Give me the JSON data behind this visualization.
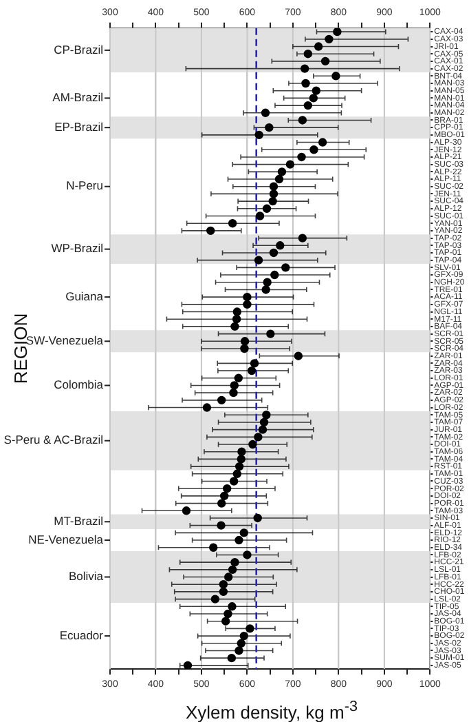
{
  "chart_data": {
    "type": "scatter",
    "orientation": "horizontal",
    "xlabel": "Xylem density, kg m$^{-3}$",
    "ylabel": "REGION",
    "categories": [
      "CAX-04",
      "CAX-03",
      "JRI-01",
      "CAX-05",
      "CAX-01",
      "CAX-02",
      "BNT-04",
      "MAN-03",
      "MAN-05",
      "MAN-01",
      "MAN-04",
      "MAN-02",
      "BRA-01",
      "CPP-01",
      "MBO-01",
      "ALP-30",
      "JEN-12",
      "ALP-21",
      "SUC-03",
      "ALP-22",
      "ALP-11",
      "SUC-02",
      "JEN-11",
      "SUC-04",
      "ALP-12",
      "SUC-01",
      "YAN-01",
      "YAN-02",
      "TAP-02",
      "TAP-03",
      "TAP-01",
      "TAP-04",
      "SLV-01",
      "GFX-09",
      "NGH-20",
      "TRE-01",
      "ACA-11",
      "GFX-07",
      "NGL-11",
      "M17-11",
      "BAF-04",
      "SCR-01",
      "SCR-05",
      "SCR-04",
      "ZAR-01",
      "ZAR-04",
      "ZAR-03",
      "LOR-01",
      "AGP-01",
      "ZAR-02",
      "AGP-02",
      "LOR-02",
      "TAM-05",
      "TAM-07",
      "JUR-01",
      "TAM-02",
      "DOI-01",
      "TAM-06",
      "TAM-04",
      "RST-01",
      "TAM-01",
      "CUZ-03",
      "POR-02",
      "DOI-02",
      "POR-01",
      "TAM-03",
      "SIN-01",
      "ALF-01",
      "ELD-12",
      "RIO-12",
      "ELD-34",
      "LFB-02",
      "HCC-21",
      "LSL-01",
      "LFB-01",
      "HCC-22",
      "CHO-01",
      "LSL-02",
      "TIP-05",
      "JAS-04",
      "BOG-01",
      "TIP-03",
      "BOG-02",
      "JAS-02",
      "JAS-03",
      "SUM-01",
      "JAS-05"
    ],
    "values": [
      797,
      779,
      756,
      733,
      771,
      726,
      794,
      728,
      751,
      745,
      733,
      640,
      721,
      648,
      626,
      765,
      746,
      719,
      694,
      676,
      670,
      658,
      658,
      656,
      643,
      628,
      568,
      520,
      721,
      672,
      658,
      625,
      684,
      660,
      644,
      641,
      600,
      600,
      578,
      577,
      573,
      651,
      595,
      594,
      712,
      616,
      610,
      581,
      572,
      570,
      544,
      512,
      642,
      637,
      634,
      624,
      612,
      588,
      587,
      583,
      578,
      571,
      556,
      550,
      544,
      467,
      623,
      543,
      593,
      582,
      526,
      600,
      573,
      568,
      559,
      548,
      548,
      530,
      567,
      558,
      553,
      606,
      593,
      587,
      582,
      566,
      470
    ],
    "errors": [
      [
        752,
        903
      ],
      [
        727,
        952
      ],
      [
        700,
        931
      ],
      [
        709,
        877
      ],
      [
        654,
        891
      ],
      [
        466,
        933
      ],
      [
        745,
        847
      ],
      [
        691,
        885
      ],
      [
        657,
        850
      ],
      [
        680,
        814
      ],
      [
        661,
        807
      ],
      [
        592,
        806
      ],
      [
        690,
        871
      ],
      [
        615,
        799
      ],
      [
        501,
        754
      ],
      [
        709,
        823
      ],
      [
        632,
        860
      ],
      [
        586,
        856
      ],
      [
        568,
        821
      ],
      [
        603,
        753
      ],
      [
        558,
        787
      ],
      [
        569,
        749
      ],
      [
        521,
        798
      ],
      [
        580,
        734
      ],
      [
        579,
        707
      ],
      [
        510,
        749
      ],
      [
        468,
        670
      ],
      [
        457,
        587
      ],
      [
        625,
        818
      ],
      [
        613,
        733
      ],
      [
        546,
        772
      ],
      [
        491,
        754
      ],
      [
        577,
        792
      ],
      [
        542,
        781
      ],
      [
        531,
        758
      ],
      [
        552,
        730
      ],
      [
        502,
        701
      ],
      [
        457,
        746
      ],
      [
        459,
        699
      ],
      [
        424,
        731
      ],
      [
        459,
        690
      ],
      [
        537,
        770
      ],
      [
        500,
        697
      ],
      [
        500,
        693
      ],
      [
        627,
        801
      ],
      [
        535,
        699
      ],
      [
        536,
        690
      ],
      [
        501,
        663
      ],
      [
        477,
        671
      ],
      [
        486,
        656
      ],
      [
        458,
        632
      ],
      [
        384,
        645
      ],
      [
        551,
        733
      ],
      [
        537,
        739
      ],
      [
        524,
        745
      ],
      [
        512,
        742
      ],
      [
        537,
        687
      ],
      [
        506,
        668
      ],
      [
        493,
        685
      ],
      [
        477,
        691
      ],
      [
        480,
        678
      ],
      [
        501,
        643
      ],
      [
        450,
        661
      ],
      [
        456,
        642
      ],
      [
        444,
        645
      ],
      [
        370,
        566
      ],
      [
        519,
        731
      ],
      [
        475,
        610
      ],
      [
        443,
        743
      ],
      [
        480,
        686
      ],
      [
        406,
        649
      ],
      [
        533,
        668
      ],
      [
        453,
        696
      ],
      [
        430,
        709
      ],
      [
        461,
        657
      ],
      [
        435,
        664
      ],
      [
        441,
        656
      ],
      [
        443,
        617
      ],
      [
        453,
        684
      ],
      [
        475,
        644
      ],
      [
        513,
        710
      ],
      [
        553,
        661
      ],
      [
        492,
        694
      ],
      [
        501,
        675
      ],
      [
        509,
        656
      ],
      [
        498,
        637
      ],
      [
        453,
        602
      ]
    ],
    "color": "#000000",
    "marker": "circle",
    "xlim": [
      300,
      1000
    ],
    "xticks": [
      300,
      {
        "value": 350,
        "label": null
      },
      400,
      {
        "value": 450,
        "label": null
      },
      500,
      {
        "value": 550,
        "label": null
      },
      600,
      {
        "value": 650,
        "label": null
      },
      700,
      {
        "value": 750,
        "label": null
      },
      800,
      {
        "value": 850,
        "label": null
      },
      900,
      {
        "value": 950,
        "label": null
      },
      1000
    ],
    "x2lim": [
      300,
      1000
    ],
    "x2ticks": [
      300,
      {
        "value": 350,
        "label": null
      },
      400,
      {
        "value": 450,
        "label": null
      },
      500,
      {
        "value": 550,
        "label": null
      },
      600,
      {
        "value": 650,
        "label": null
      },
      700,
      {
        "value": 750,
        "label": null
      },
      800,
      {
        "value": 850,
        "label": null
      },
      900,
      {
        "value": 950,
        "label": null
      },
      1000
    ],
    "grid": "x",
    "legend": false,
    "ref_lines": [
      {
        "axis": "x",
        "value": 620,
        "color": "#2323d2",
        "line_style": "dashed"
      }
    ],
    "bands": [
      {
        "axis": "y",
        "from": "CAX-04",
        "to": "CAX-02",
        "label": "CP-Brazil",
        "color": "#e2e2e2"
      },
      {
        "axis": "y",
        "from": "BRA-01",
        "to": "MBO-01",
        "label": "EP-Brazil",
        "color": "#e2e2e2"
      },
      {
        "axis": "y",
        "from": "TAP-02",
        "to": "TAP-04",
        "label": "WP-Brazil",
        "color": "#e2e2e2"
      },
      {
        "axis": "y",
        "from": "SCR-01",
        "to": "SCR-04",
        "label": "SW-Venezuela",
        "color": "#e2e2e2"
      },
      {
        "axis": "y",
        "from": "TAM-05",
        "to": "RST-01",
        "label": "S-Peru & AC-Brazil",
        "color": "#e2e2e2"
      },
      {
        "axis": "y",
        "from": "SIN-01",
        "to": "ALF-01",
        "label": "MT-Brazil",
        "color": "#e2e2e2"
      },
      {
        "axis": "y",
        "from": "LFB-02",
        "to": "LSL-02",
        "label": "Bolivia",
        "color": "#e2e2e2"
      }
    ],
    "annotations": [
      "AM-Brazil",
      "N-Peru",
      "Guiana",
      "Colombia",
      "NE-Venezuela",
      "Ecuador"
    ]
  }
}
